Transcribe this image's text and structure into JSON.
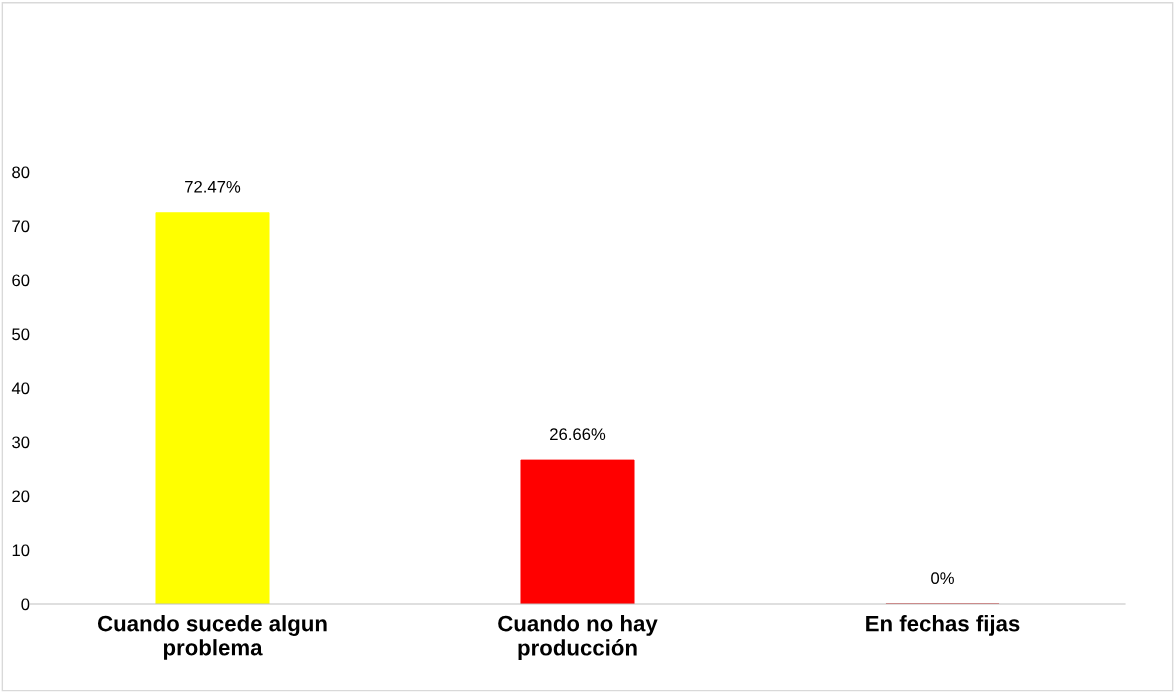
{
  "chart_data": {
    "type": "bar",
    "categories": [
      "Cuando sucede algun\nproblema",
      "Cuando no hay\nproducción",
      "En fechas fijas"
    ],
    "values": [
      72.47,
      26.66,
      0
    ],
    "colors": [
      "#ffff00",
      "#ff0000",
      "#c00000"
    ],
    "value_labels": [
      "72.47%",
      "26.66%",
      "0%"
    ],
    "ylim": [
      0,
      80
    ],
    "yticks": [
      0,
      10,
      20,
      30,
      40,
      50,
      60,
      70,
      80
    ],
    "grid": false,
    "legend": false
  }
}
